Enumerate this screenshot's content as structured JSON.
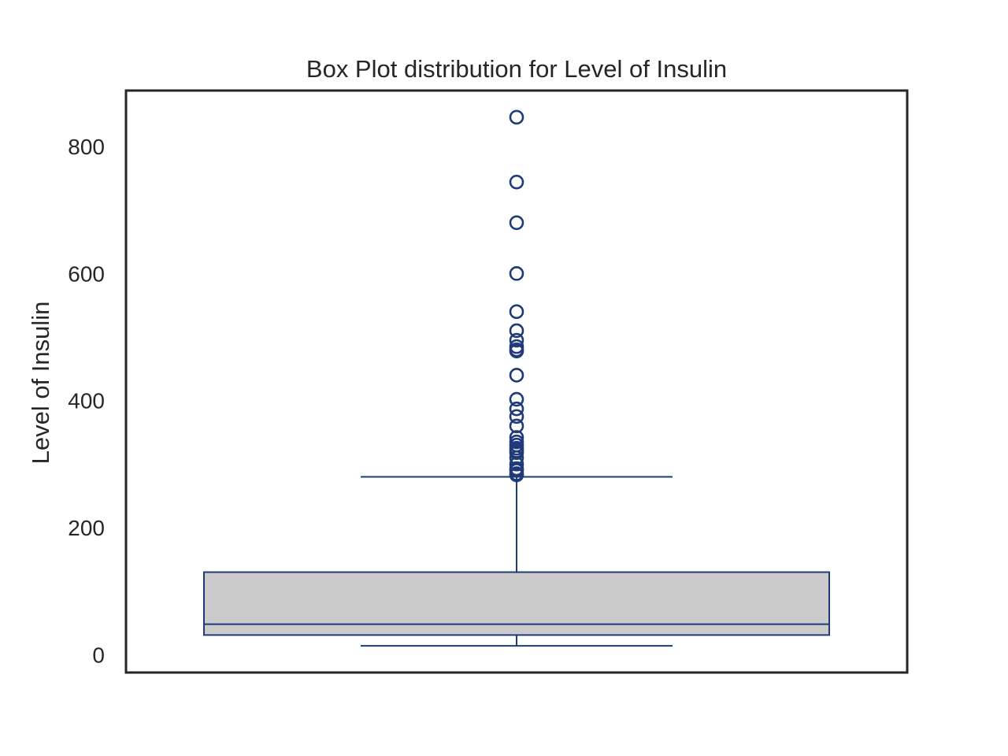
{
  "chart_data": {
    "type": "box",
    "title": "Box Plot distribution for Level of Insulin",
    "xlabel": "",
    "ylabel": "Level of Insulin",
    "ylim": [
      -28,
      888
    ],
    "yticks": [
      0,
      200,
      400,
      600,
      800
    ],
    "ytick_labels": [
      "0",
      "200",
      "400",
      "600",
      "800"
    ],
    "grid": false,
    "box": {
      "whisker_low": 14,
      "q1": 31,
      "median": 48,
      "q3": 130,
      "whisker_high": 280
    },
    "outliers": [
      846,
      744,
      680,
      600,
      540,
      510,
      495,
      485,
      480,
      478,
      440,
      402,
      387,
      375,
      360,
      342,
      335,
      330,
      325,
      321,
      318,
      310,
      300,
      293,
      290,
      285,
      283
    ],
    "colors": {
      "line": "#1f3a7a",
      "box_fill": "#cbcbcb",
      "frame": "#262626"
    }
  }
}
